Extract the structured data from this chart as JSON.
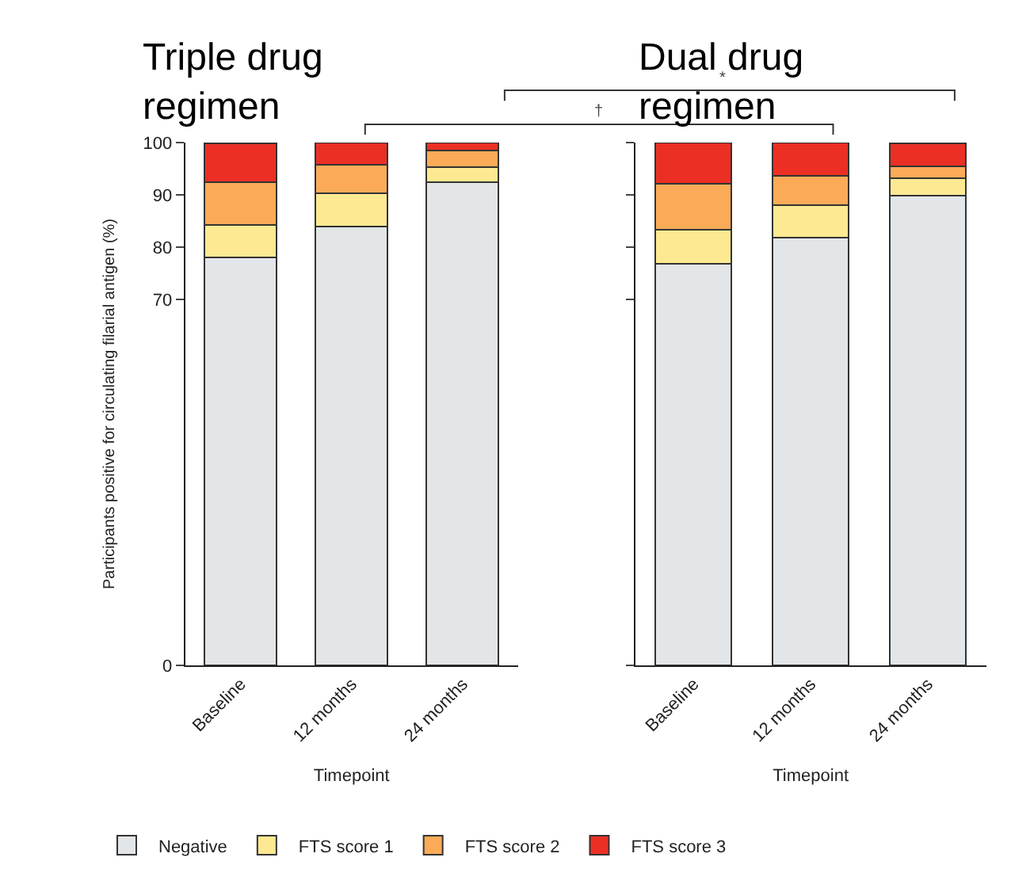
{
  "chart_data": [
    {
      "type": "bar",
      "stacked": true,
      "title": "Triple drug\nregimen",
      "xlabel": "Timepoint",
      "ylabel": "Participants positive for circulating filarial antigen (%)",
      "categories": [
        "Baseline",
        "12 months",
        "24 months"
      ],
      "series": [
        {
          "name": "Negative",
          "color": "#e3e6e9",
          "values": [
            78.0,
            84.0,
            92.4
          ]
        },
        {
          "name": "FTS score 1",
          "color": "#fde992",
          "values": [
            6.3,
            6.3,
            2.9
          ]
        },
        {
          "name": "FTS score 2",
          "color": "#fbab58",
          "values": [
            8.2,
            5.5,
            3.2
          ]
        },
        {
          "name": "FTS score 3",
          "color": "#eb2f25",
          "values": [
            7.3,
            4.2,
            1.5
          ]
        }
      ],
      "ylim": [
        0,
        100
      ],
      "yticks": [
        0,
        70,
        80,
        90,
        100
      ],
      "legend": "bottom",
      "annotations": [
        "†",
        "*"
      ]
    },
    {
      "type": "bar",
      "stacked": true,
      "title": "Dual drug\nregimen",
      "xlabel": "Timepoint",
      "categories": [
        "Baseline",
        "12 months",
        "24 months"
      ],
      "series": [
        {
          "color": "#e3e6e9",
          "values": [
            76.8,
            81.8,
            89.9
          ]
        },
        {
          "color": "#fde992",
          "values": [
            6.6,
            6.2,
            3.3
          ]
        },
        {
          "color": "#fbab58",
          "values": [
            8.7,
            5.6,
            2.2
          ]
        },
        {
          "color": "#eb2f25",
          "values": [
            7.9,
            6.4,
            4.4
          ]
        }
      ],
      "ylim": [
        0,
        100
      ],
      "yticks": [
        0,
        70,
        80,
        90,
        100
      ],
      "tick_labels": "x",
      "legend": false
    }
  ]
}
